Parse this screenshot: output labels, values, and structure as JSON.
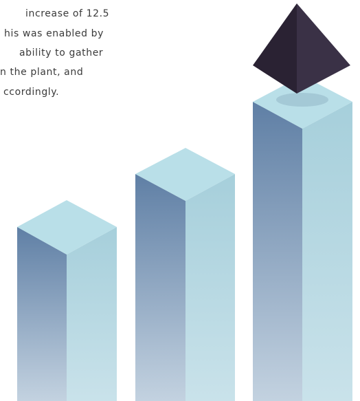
{
  "text": {
    "lines": [
      "increase of 12.5",
      "his was enabled by",
      "ability to gather",
      "n the plant, and",
      "ccordingly."
    ]
  }
}
